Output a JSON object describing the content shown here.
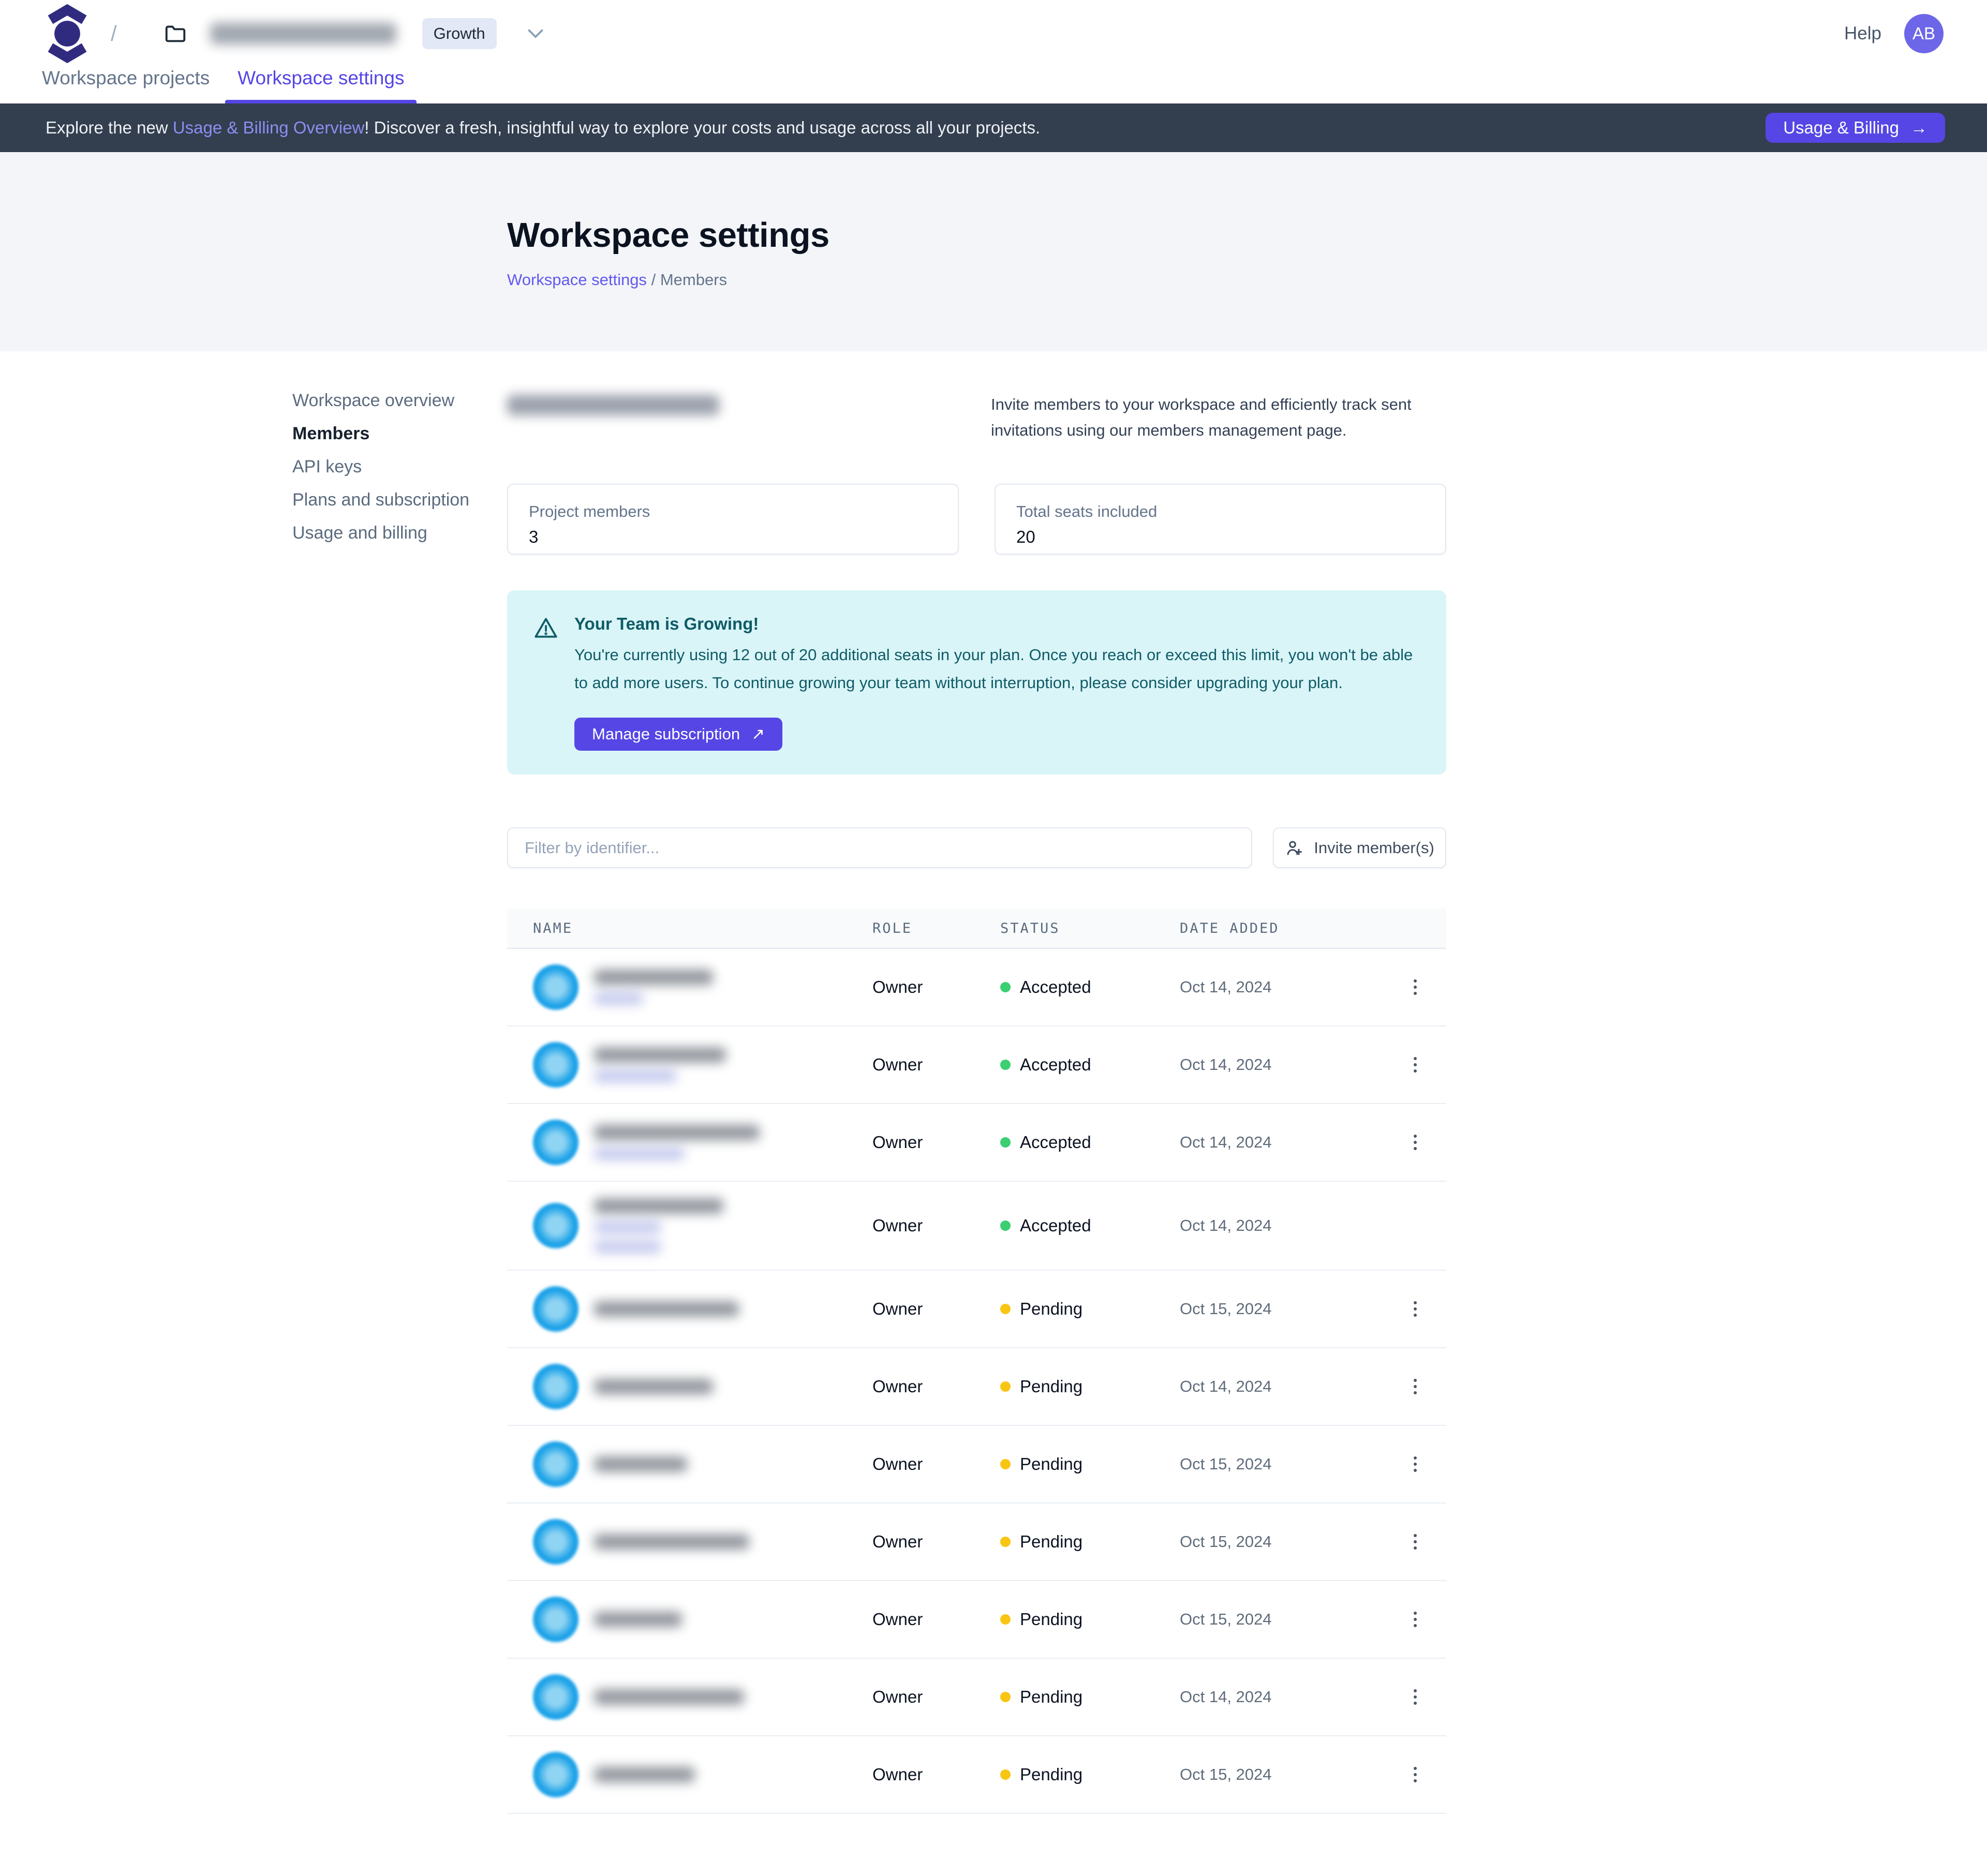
{
  "navbar": {
    "breadcrumb_separator": "/",
    "workspace_name_redacted": true,
    "plan_badge": "Growth",
    "help_label": "Help",
    "avatar_initials": "AB"
  },
  "tabs": [
    {
      "label": "Workspace projects",
      "active": false
    },
    {
      "label": "Workspace settings",
      "active": true
    }
  ],
  "banner": {
    "text_prefix": "Explore the new ",
    "link_text": "Usage & Billing Overview",
    "text_suffix": "! Discover a fresh, insightful way to explore your costs and usage across all your projects.",
    "button_label": "Usage & Billing",
    "button_arrow": "→"
  },
  "page_header": {
    "title": "Workspace settings",
    "breadcrumb_link": "Workspace settings",
    "breadcrumb_separator": "/",
    "breadcrumb_current": "Members"
  },
  "sidebar": {
    "items": [
      {
        "label": "Workspace overview",
        "active": false
      },
      {
        "label": "Members",
        "active": true
      },
      {
        "label": "API keys",
        "active": false
      },
      {
        "label": "Plans and subscription",
        "active": false
      },
      {
        "label": "Usage and billing",
        "active": false
      }
    ]
  },
  "members": {
    "heading_redacted": true,
    "intro": "Invite members to your workspace and efficiently track sent invitations using our members management page.",
    "cards": [
      {
        "label": "Project members",
        "value": "3"
      },
      {
        "label": "Total seats included",
        "value": "20"
      }
    ],
    "alert": {
      "title": "Your Team is Growing!",
      "body": "You're currently using 12 out of 20 additional seats in your plan. Once you reach or exceed this limit, you won't be able to add more users. To continue growing your team without interruption, please consider upgrading your plan.",
      "button_label": "Manage subscription",
      "button_arrow": "↗"
    },
    "filter_placeholder": "Filter by identifier...",
    "invite_button_label": "Invite member(s)"
  },
  "table": {
    "columns": [
      "NAME",
      "ROLE",
      "STATUS",
      "DATE ADDED"
    ],
    "rows": [
      {
        "role": "Owner",
        "status": "Accepted",
        "date": "Oct 14, 2024",
        "kebab": true,
        "redacted": {
          "email_w": 230,
          "name_lines": 1,
          "name_w": 95
        }
      },
      {
        "role": "Owner",
        "status": "Accepted",
        "date": "Oct 14, 2024",
        "kebab": true,
        "redacted": {
          "email_w": 255,
          "name_lines": 1,
          "name_w": 160
        }
      },
      {
        "role": "Owner",
        "status": "Accepted",
        "date": "Oct 14, 2024",
        "kebab": true,
        "redacted": {
          "email_w": 320,
          "name_lines": 1,
          "name_w": 175
        }
      },
      {
        "role": "Owner",
        "status": "Accepted",
        "date": "Oct 14, 2024",
        "kebab": false,
        "redacted": {
          "email_w": 250,
          "name_lines": 2,
          "name_w": 130
        }
      },
      {
        "role": "Owner",
        "status": "Pending",
        "date": "Oct 15, 2024",
        "kebab": true,
        "redacted": {
          "email_w": 280,
          "name_lines": 0,
          "name_w": 0
        }
      },
      {
        "role": "Owner",
        "status": "Pending",
        "date": "Oct 14, 2024",
        "kebab": true,
        "redacted": {
          "email_w": 230,
          "name_lines": 0,
          "name_w": 0
        }
      },
      {
        "role": "Owner",
        "status": "Pending",
        "date": "Oct 15, 2024",
        "kebab": true,
        "redacted": {
          "email_w": 180,
          "name_lines": 0,
          "name_w": 0
        }
      },
      {
        "role": "Owner",
        "status": "Pending",
        "date": "Oct 15, 2024",
        "kebab": true,
        "redacted": {
          "email_w": 300,
          "name_lines": 0,
          "name_w": 0
        }
      },
      {
        "role": "Owner",
        "status": "Pending",
        "date": "Oct 15, 2024",
        "kebab": true,
        "redacted": {
          "email_w": 170,
          "name_lines": 0,
          "name_w": 0
        }
      },
      {
        "role": "Owner",
        "status": "Pending",
        "date": "Oct 14, 2024",
        "kebab": true,
        "redacted": {
          "email_w": 290,
          "name_lines": 0,
          "name_w": 0
        }
      },
      {
        "role": "Owner",
        "status": "Pending",
        "date": "Oct 15, 2024",
        "kebab": true,
        "redacted": {
          "email_w": 195,
          "name_lines": 0,
          "name_w": 0
        }
      }
    ]
  },
  "colors": {
    "accent": "#5546e5",
    "banner_bg": "#333e4e",
    "alert_bg": "#d9f5f8",
    "alert_text": "#0f5b66",
    "accepted_dot": "#3bcf72",
    "pending_dot": "#f9c513",
    "avatar_blue": "#1da2e8",
    "user_avatar": "#6d66e8"
  }
}
